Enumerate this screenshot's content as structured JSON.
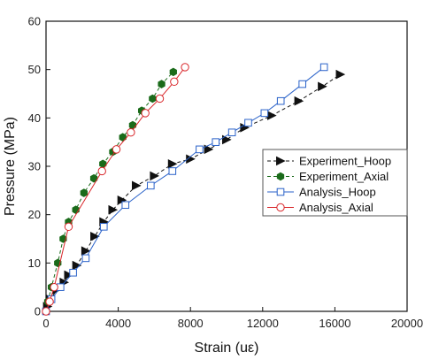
{
  "chart_data": {
    "type": "line",
    "title": "",
    "xlabel": "Strain (uε)",
    "ylabel": "Pressure (MPa)",
    "xlim": [
      0,
      20000
    ],
    "ylim": [
      0,
      60
    ],
    "xticks": [
      0,
      4000,
      8000,
      12000,
      16000,
      20000
    ],
    "yticks": [
      0,
      10,
      20,
      30,
      40,
      50,
      60
    ],
    "grid": false,
    "legend_position": "right",
    "series": [
      {
        "name": "Experiment_Hoop",
        "color": "#111111",
        "dash": "dashed",
        "marker": "triangle-right-filled",
        "x": [
          80,
          250,
          600,
          1000,
          1250,
          1700,
          2200,
          2700,
          3200,
          3700,
          4200,
          5000,
          6000,
          7000,
          8000,
          9000,
          10000,
          11000,
          12500,
          14000,
          15300,
          16300
        ],
        "y": [
          1,
          2.5,
          4.5,
          6,
          7.5,
          9.5,
          12.5,
          15.5,
          18.5,
          21,
          23,
          26,
          28,
          30.5,
          31.5,
          33.5,
          35.5,
          38,
          40.5,
          43.5,
          46.5,
          49
        ]
      },
      {
        "name": "Experiment_Axial",
        "color": "#1a6b1a",
        "dash": "dashed",
        "marker": "hexagon-filled",
        "x": [
          100,
          300,
          650,
          950,
          1250,
          1650,
          2100,
          2650,
          3150,
          3700,
          4250,
          4800,
          5300,
          5900,
          6400,
          7050
        ],
        "y": [
          2,
          5,
          10,
          15,
          18.5,
          21,
          24.5,
          27.5,
          30.5,
          33,
          36,
          38.5,
          41.5,
          44,
          47,
          49.5
        ]
      },
      {
        "name": "Analysis_Hoop",
        "color": "#2a62c9",
        "dash": "solid",
        "marker": "square-open",
        "x": [
          0,
          300,
          800,
          1500,
          2200,
          3200,
          4400,
          5800,
          7000,
          8500,
          9400,
          10300,
          11200,
          12100,
          13000,
          14200,
          15400
        ],
        "y": [
          0,
          2.5,
          5,
          8,
          11,
          17.5,
          22,
          26,
          29,
          33.5,
          35,
          37,
          39,
          41,
          43.5,
          47,
          50.5
        ]
      },
      {
        "name": "Analysis_Axial",
        "color": "#d9262a",
        "dash": "solid",
        "marker": "circle-open",
        "x": [
          0,
          200,
          450,
          1250,
          3100,
          3900,
          4700,
          5500,
          6300,
          7100,
          7700
        ],
        "y": [
          0,
          2,
          5,
          17.5,
          29,
          33.5,
          37,
          41,
          44,
          47.5,
          50.5
        ]
      }
    ]
  }
}
